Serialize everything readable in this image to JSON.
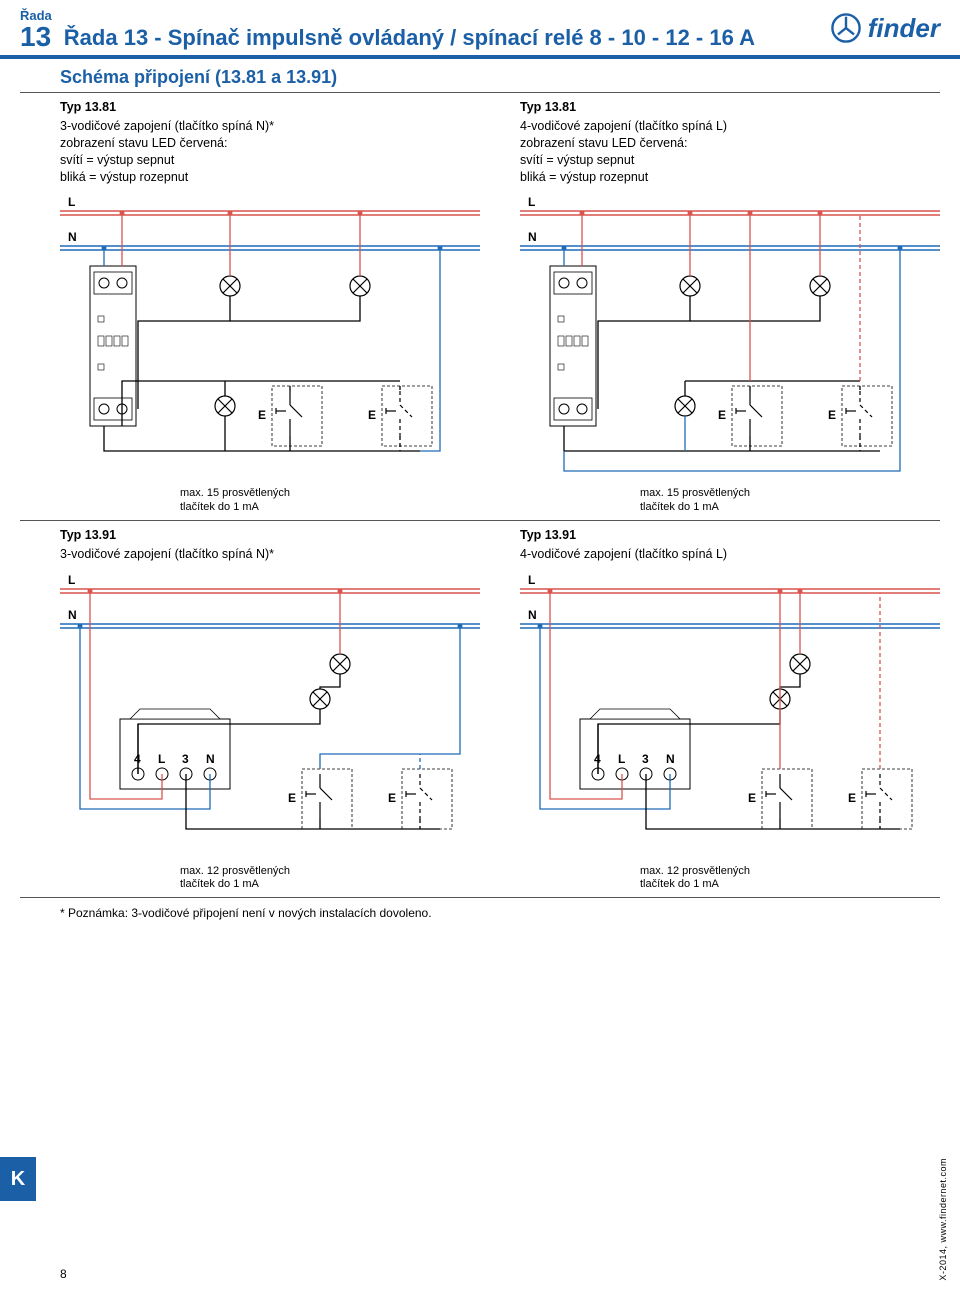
{
  "header": {
    "series_label": "Řada",
    "series_num": "13",
    "title": "Řada 13 - Spínač impulsně ovládaný / spínací relé 8 - 10 - 12 - 16 A",
    "logo_text": "finder"
  },
  "subtitle": "Schéma připojení (13.81 a 13.91)",
  "blocks": [
    {
      "typ": "Typ 13.81",
      "lines": [
        "3-vodičové zapojení (tlačítko spíná N)*",
        "zobrazení stavu LED červená:",
        "svítí = výstup sepnut",
        "bliká = výstup rozepnut"
      ],
      "caption1": "max. 15 prosvětlených",
      "caption2": "tlačítek do 1 mA"
    },
    {
      "typ": "Typ 13.81",
      "lines": [
        "4-vodičové zapojení (tlačítko spíná L)",
        "zobrazení stavu LED červená:",
        "svítí = výstup sepnut",
        "bliká = výstup rozepnut"
      ],
      "caption1": "max. 15 prosvětlených",
      "caption2": "tlačítek do 1 mA"
    },
    {
      "typ": "Typ 13.91",
      "lines": [
        "3-vodičové zapojení (tlačítko spíná N)*"
      ],
      "caption1": "max. 12 prosvětlených",
      "caption2": "tlačítek do 1 mA"
    },
    {
      "typ": "Typ 13.91",
      "lines": [
        "4-vodičové zapojení (tlačítko spíná L)"
      ],
      "caption1": "max. 12 prosvětlených",
      "caption2": "tlačítek do 1 mA"
    }
  ],
  "labels": {
    "L": "L",
    "N": "N",
    "E": "E",
    "terms": [
      "4",
      "L",
      "3",
      "N"
    ]
  },
  "footnote": "* Poznámka: 3-vodičové připojení není v nových instalacích dovoleno.",
  "k_tab": "K",
  "page_num": "8",
  "side_credit": "X-2014, www.findernet.com",
  "colors": {
    "blue": "#1b5fa6",
    "wire_blue": "#1e6bb8",
    "wire_red": "#d9534f",
    "black": "#000"
  }
}
